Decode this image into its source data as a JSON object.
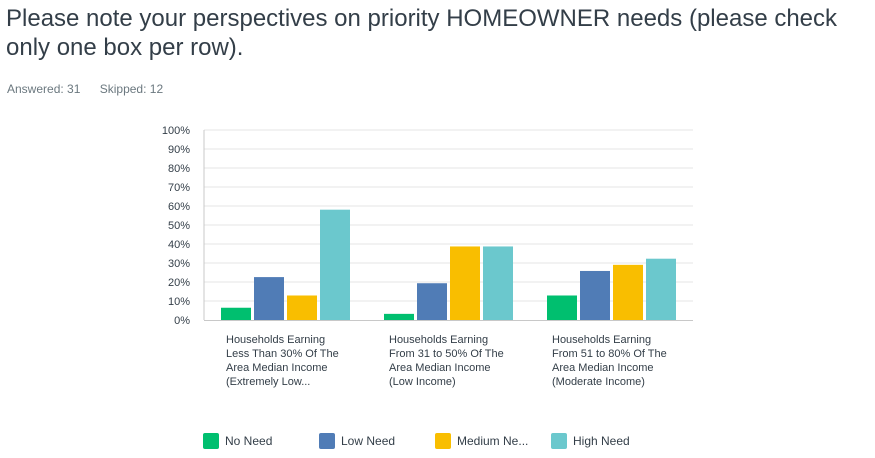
{
  "question": {
    "title": "Please note your perspectives on priority HOMEOWNER needs (please check only one box per row).",
    "answered": "Answered: 31",
    "skipped": "Skipped: 12"
  },
  "chart_data": {
    "type": "bar",
    "title": "",
    "xlabel": "",
    "ylabel": "",
    "ylim": [
      0,
      100
    ],
    "yticks": [
      "0%",
      "10%",
      "20%",
      "30%",
      "40%",
      "50%",
      "60%",
      "70%",
      "80%",
      "90%",
      "100%"
    ],
    "grid": true,
    "legend_position": "bottom",
    "categories": [
      [
        "Households Earning",
        "Less Than 30% Of The",
        "Area Median Income",
        "(Extremely Low..."
      ],
      [
        "Households Earning",
        "From 31 to 50% Of The",
        "Area Median Income",
        "(Low Income)"
      ],
      [
        "Households Earning",
        "From 51 to 80% Of The",
        "Area Median Income",
        "(Moderate Income)"
      ]
    ],
    "series": [
      {
        "name": "No Need",
        "legend_label": "No Need",
        "color": "#00bf6f",
        "values": [
          6.45,
          3.23,
          12.9
        ]
      },
      {
        "name": "Low Need",
        "legend_label": "Low Need",
        "color": "#507cb6",
        "values": [
          22.58,
          19.35,
          25.81
        ]
      },
      {
        "name": "Medium Need",
        "legend_label": "Medium Ne...",
        "color": "#f9be00",
        "values": [
          12.9,
          38.71,
          29.03
        ]
      },
      {
        "name": "High Need",
        "legend_label": "High Need",
        "color": "#6bc8cd",
        "values": [
          58.06,
          38.71,
          32.26
        ]
      }
    ]
  }
}
